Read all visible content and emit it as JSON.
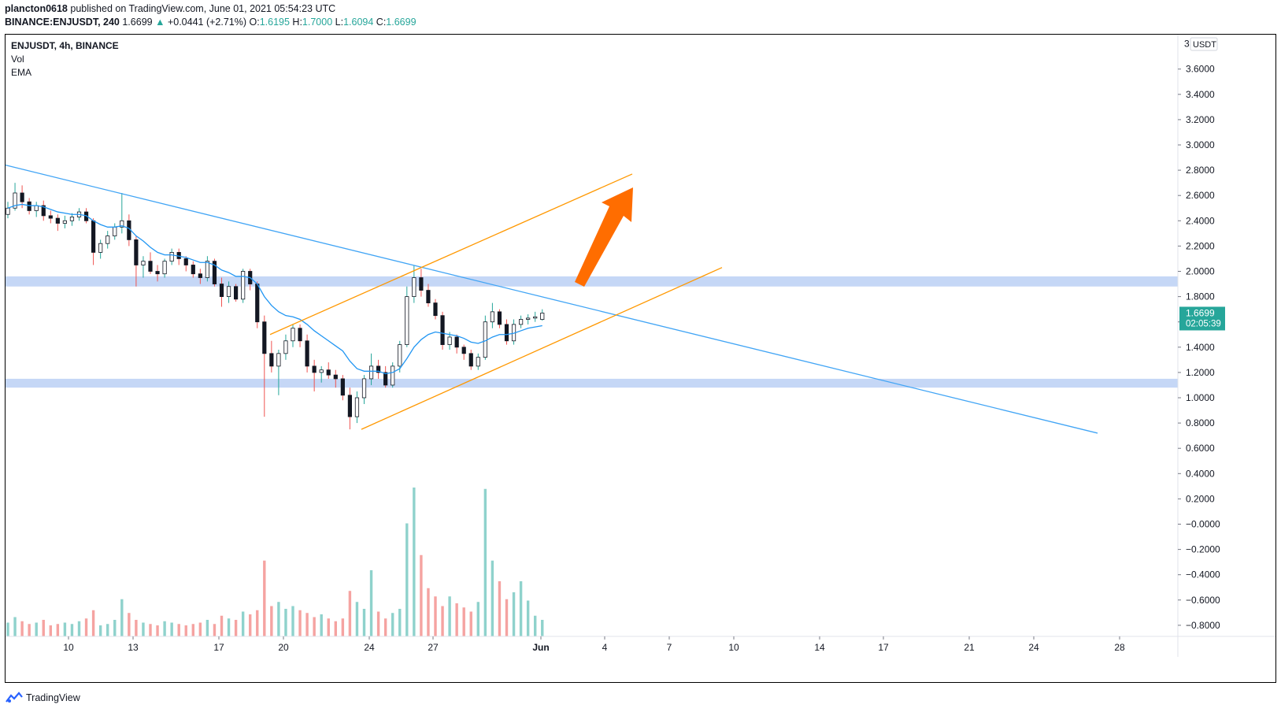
{
  "header": {
    "user": "plancton0618",
    "published_text": "published on TradingView.com, June 01, 2021 05:54:23 UTC",
    "symbol_interval": "BINANCE:ENJUSDT, 240",
    "last": "1.6699",
    "change": "+0.0441 (+2.71%)",
    "o_label": "O:",
    "o_value": "1.6195",
    "h_label": "H:",
    "h_value": "1.7000",
    "l_label": "L:",
    "l_value": "1.6094",
    "c_label": "C:",
    "c_value": "1.6699"
  },
  "legend": {
    "title": "ENJUSDT, 4h, BINANCE",
    "vol": "Vol",
    "ema": "EMA"
  },
  "price_axis": {
    "currency": "USDT",
    "top_label": "3",
    "labels": [
      "3.6000",
      "3.4000",
      "3.2000",
      "3.0000",
      "2.8000",
      "2.6000",
      "2.4000",
      "2.2000",
      "2.0000",
      "1.8000",
      "1.6000",
      "1.4000",
      "1.2000",
      "1.0000",
      "0.8000",
      "0.6000",
      "0.4000",
      "0.2000",
      "−0.0000",
      "−0.2000",
      "−0.4000",
      "−0.6000",
      "−0.8000"
    ],
    "last_price_label": "1.6699",
    "countdown": "02:05:39"
  },
  "time_axis": {
    "labels": [
      "10",
      "13",
      "17",
      "20",
      "24",
      "27",
      "Jun",
      "4",
      "7",
      "10",
      "14",
      "17",
      "21",
      "24",
      "28"
    ]
  },
  "footer": {
    "brand": "TradingView"
  },
  "colors": {
    "up": "#26a69a",
    "down": "#ef5350",
    "candle": "#131722",
    "ema": "#2196f3",
    "trendline": "#42a5f5",
    "channel": "#ff9800",
    "arrow": "#ff6d00",
    "zone": "#bbd0f5",
    "badge": "#26a69a"
  },
  "chart_data": {
    "type": "candlestick",
    "symbol": "ENJUSDT",
    "ylim": [
      -0.9,
      3.7
    ],
    "candles": [
      [
        2.45,
        2.55,
        2.42,
        2.5
      ],
      [
        2.5,
        2.7,
        2.48,
        2.62
      ],
      [
        2.62,
        2.68,
        2.5,
        2.55
      ],
      [
        2.55,
        2.58,
        2.45,
        2.48
      ],
      [
        2.48,
        2.55,
        2.43,
        2.52
      ],
      [
        2.52,
        2.56,
        2.4,
        2.44
      ],
      [
        2.44,
        2.48,
        2.38,
        2.42
      ],
      [
        2.42,
        2.45,
        2.32,
        2.38
      ],
      [
        2.38,
        2.44,
        2.34,
        2.4
      ],
      [
        2.4,
        2.46,
        2.36,
        2.43
      ],
      [
        2.43,
        2.5,
        2.4,
        2.47
      ],
      [
        2.47,
        2.5,
        2.38,
        2.4
      ],
      [
        2.4,
        2.42,
        2.05,
        2.15
      ],
      [
        2.15,
        2.25,
        2.1,
        2.22
      ],
      [
        2.22,
        2.32,
        2.18,
        2.28
      ],
      [
        2.28,
        2.38,
        2.25,
        2.35
      ],
      [
        2.35,
        2.62,
        2.3,
        2.4
      ],
      [
        2.4,
        2.45,
        2.2,
        2.25
      ],
      [
        2.25,
        2.28,
        1.88,
        2.05
      ],
      [
        2.05,
        2.12,
        1.95,
        2.08
      ],
      [
        2.08,
        2.15,
        1.98,
        2.0
      ],
      [
        2.0,
        2.05,
        1.92,
        1.98
      ],
      [
        1.98,
        2.1,
        1.95,
        2.08
      ],
      [
        2.08,
        2.18,
        2.05,
        2.15
      ],
      [
        2.15,
        2.18,
        2.05,
        2.1
      ],
      [
        2.1,
        2.12,
        2.0,
        2.05
      ],
      [
        2.05,
        2.08,
        1.95,
        1.98
      ],
      [
        1.98,
        2.02,
        1.9,
        1.95
      ],
      [
        1.95,
        2.12,
        1.92,
        2.08
      ],
      [
        2.08,
        2.1,
        1.88,
        1.9
      ],
      [
        1.9,
        1.95,
        1.72,
        1.8
      ],
      [
        1.8,
        1.92,
        1.75,
        1.88
      ],
      [
        1.88,
        1.9,
        1.76,
        1.78
      ],
      [
        1.78,
        2.02,
        1.75,
        2.0
      ],
      [
        2.0,
        2.02,
        1.85,
        1.9
      ],
      [
        1.9,
        1.92,
        1.55,
        1.6
      ],
      [
        1.6,
        1.65,
        0.85,
        1.35
      ],
      [
        1.35,
        1.45,
        1.2,
        1.25
      ],
      [
        1.25,
        1.38,
        1.02,
        1.35
      ],
      [
        1.35,
        1.5,
        1.3,
        1.45
      ],
      [
        1.45,
        1.58,
        1.4,
        1.55
      ],
      [
        1.55,
        1.58,
        1.4,
        1.45
      ],
      [
        1.45,
        1.5,
        1.2,
        1.25
      ],
      [
        1.25,
        1.3,
        1.05,
        1.2
      ],
      [
        1.2,
        1.25,
        1.12,
        1.22
      ],
      [
        1.22,
        1.28,
        1.15,
        1.18
      ],
      [
        1.18,
        1.22,
        1.08,
        1.15
      ],
      [
        1.15,
        1.18,
        0.98,
        1.02
      ],
      [
        1.02,
        1.08,
        0.75,
        0.85
      ],
      [
        0.85,
        1.05,
        0.8,
        1.0
      ],
      [
        1.0,
        1.18,
        0.95,
        1.15
      ],
      [
        1.15,
        1.35,
        1.1,
        1.25
      ],
      [
        1.25,
        1.3,
        1.15,
        1.2
      ],
      [
        1.2,
        1.25,
        1.08,
        1.1
      ],
      [
        1.1,
        1.28,
        1.08,
        1.25
      ],
      [
        1.25,
        1.45,
        1.2,
        1.42
      ],
      [
        1.42,
        1.88,
        1.4,
        1.8
      ],
      [
        1.8,
        2.05,
        1.75,
        1.95
      ],
      [
        1.95,
        2.02,
        1.8,
        1.85
      ],
      [
        1.85,
        1.9,
        1.72,
        1.75
      ],
      [
        1.75,
        1.78,
        1.62,
        1.65
      ],
      [
        1.65,
        1.68,
        1.38,
        1.42
      ],
      [
        1.42,
        1.52,
        1.38,
        1.48
      ],
      [
        1.48,
        1.5,
        1.35,
        1.4
      ],
      [
        1.4,
        1.42,
        1.3,
        1.35
      ],
      [
        1.35,
        1.38,
        1.22,
        1.25
      ],
      [
        1.25,
        1.35,
        1.22,
        1.32
      ],
      [
        1.32,
        1.65,
        1.3,
        1.6
      ],
      [
        1.6,
        1.75,
        1.55,
        1.68
      ],
      [
        1.68,
        1.7,
        1.55,
        1.58
      ],
      [
        1.58,
        1.62,
        1.42,
        1.45
      ],
      [
        1.45,
        1.62,
        1.42,
        1.58
      ],
      [
        1.58,
        1.65,
        1.55,
        1.62
      ],
      [
        1.62,
        1.66,
        1.58,
        1.63
      ],
      [
        1.63,
        1.68,
        1.6,
        1.64
      ],
      [
        1.6195,
        1.7,
        1.6094,
        1.6699
      ]
    ],
    "volume": [
      0.1,
      0.14,
      0.11,
      0.09,
      0.1,
      0.12,
      0.08,
      0.09,
      0.1,
      0.09,
      0.11,
      0.13,
      0.19,
      0.08,
      0.09,
      0.12,
      0.27,
      0.17,
      0.12,
      0.1,
      0.09,
      0.08,
      0.11,
      0.1,
      0.09,
      0.08,
      0.09,
      0.1,
      0.12,
      0.09,
      0.15,
      0.13,
      0.12,
      0.18,
      0.16,
      0.19,
      0.55,
      0.22,
      0.25,
      0.2,
      0.22,
      0.19,
      0.17,
      0.14,
      0.16,
      0.13,
      0.11,
      0.13,
      0.33,
      0.25,
      0.2,
      0.48,
      0.18,
      0.13,
      0.17,
      0.2,
      0.82,
      1.08,
      0.59,
      0.35,
      0.29,
      0.22,
      0.29,
      0.24,
      0.21,
      0.18,
      0.25,
      1.07,
      0.55,
      0.4,
      0.27,
      0.32,
      0.4,
      0.26,
      0.15,
      0.12
    ],
    "ema": [
      2.5,
      2.52,
      2.53,
      2.52,
      2.52,
      2.51,
      2.49,
      2.47,
      2.46,
      2.45,
      2.45,
      2.44,
      2.4,
      2.37,
      2.35,
      2.35,
      2.36,
      2.34,
      2.28,
      2.24,
      2.19,
      2.15,
      2.13,
      2.13,
      2.12,
      2.11,
      2.09,
      2.07,
      2.07,
      2.05,
      2.01,
      1.99,
      1.96,
      1.96,
      1.95,
      1.9,
      1.8,
      1.73,
      1.68,
      1.65,
      1.64,
      1.62,
      1.58,
      1.53,
      1.49,
      1.45,
      1.41,
      1.37,
      1.29,
      1.23,
      1.21,
      1.21,
      1.21,
      1.19,
      1.2,
      1.23,
      1.31,
      1.4,
      1.46,
      1.5,
      1.52,
      1.51,
      1.5,
      1.49,
      1.47,
      1.44,
      1.43,
      1.45,
      1.48,
      1.5,
      1.5,
      1.51,
      1.53,
      1.55,
      1.56,
      1.57
    ],
    "zones": [
      [
        1.88,
        1.96
      ],
      [
        1.08,
        1.15
      ]
    ],
    "trendline": {
      "start_price": 2.84,
      "end_price": 0.72
    },
    "channel": {
      "upper": [
        1.5,
        2.77
      ],
      "lower": [
        0.75,
        2.03
      ]
    }
  }
}
